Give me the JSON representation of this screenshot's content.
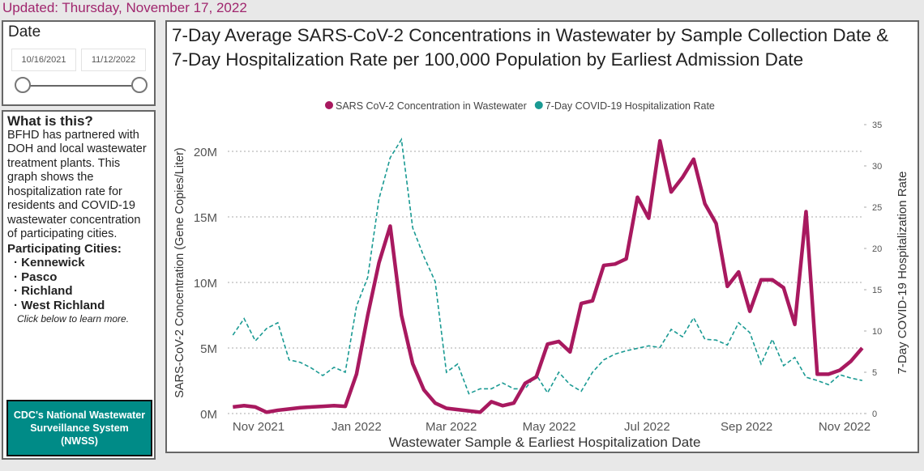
{
  "updated": "Updated: Thursday, November 17, 2022",
  "date_filter": {
    "label": "Date",
    "start": "10/16/2021",
    "end": "11/12/2022",
    "slider_start": 0,
    "slider_end": 1
  },
  "info": {
    "heading": "What is this?",
    "body": "BFHD has partnered with DOH and local wastewater treatment plants. This graph shows the hospitalization rate for residents and COVID-19 wastewater concentration of participating cities.",
    "cities_heading": "Participating Cities:",
    "cities": [
      "Kennewick",
      "Pasco",
      "Richland",
      "West Richland"
    ],
    "more": "Click below to learn more.",
    "button": "CDC's National Wastewater Surveillance System (NWSS)"
  },
  "chart_data": {
    "type": "line",
    "title": "7-Day Average SARS-CoV-2 Concentrations in Wastewater by Sample Collection Date & 7-Day Hospitalization Rate per 100,000 Population by Earliest Admission Date",
    "xlabel": "Wastewater Sample & Earliest Hospitalization Date",
    "ylabel": "SARS-CoV-2 Concentration (Gene Copies/Liter)",
    "y2label": "7-Day COVID-19 Hospitalization Rate",
    "xticks": [
      "Nov 2021",
      "Jan 2022",
      "Mar 2022",
      "May 2022",
      "Jul 2022",
      "Sep 2022",
      "Nov 2022"
    ],
    "xtick_dates": [
      "2021-11-01",
      "2022-01-01",
      "2022-03-01",
      "2022-05-01",
      "2022-07-01",
      "2022-09-01",
      "2022-11-01"
    ],
    "yticks": [
      "0M",
      "5M",
      "10M",
      "15M",
      "20M"
    ],
    "ylim": [
      0,
      20000000
    ],
    "y2ticks": [
      "0",
      "5",
      "10",
      "15",
      "20",
      "25",
      "30",
      "35"
    ],
    "y2lim": [
      0,
      35
    ],
    "grid": true,
    "legend": "top",
    "x": [
      "2021-10-16",
      "2021-10-23",
      "2021-10-30",
      "2021-11-06",
      "2021-11-13",
      "2021-11-20",
      "2021-11-27",
      "2021-12-04",
      "2021-12-11",
      "2021-12-18",
      "2021-12-25",
      "2022-01-01",
      "2022-01-08",
      "2022-01-15",
      "2022-01-22",
      "2022-01-29",
      "2022-02-05",
      "2022-02-12",
      "2022-02-19",
      "2022-02-26",
      "2022-03-05",
      "2022-03-12",
      "2022-03-19",
      "2022-03-26",
      "2022-04-02",
      "2022-04-09",
      "2022-04-16",
      "2022-04-23",
      "2022-04-30",
      "2022-05-07",
      "2022-05-14",
      "2022-05-21",
      "2022-05-28",
      "2022-06-04",
      "2022-06-11",
      "2022-06-18",
      "2022-06-25",
      "2022-07-02",
      "2022-07-09",
      "2022-07-16",
      "2022-07-23",
      "2022-07-30",
      "2022-08-06",
      "2022-08-13",
      "2022-08-20",
      "2022-08-27",
      "2022-09-03",
      "2022-09-10",
      "2022-09-17",
      "2022-09-24",
      "2022-10-01",
      "2022-10-08",
      "2022-10-15",
      "2022-10-22",
      "2022-10-29",
      "2022-11-05",
      "2022-11-12"
    ],
    "series": [
      {
        "name": "SARS CoV-2 Concentration in Wastewater",
        "color": "#a8195f",
        "axis": "left",
        "values": [
          500000,
          600000,
          500000,
          100000,
          250000,
          350000,
          450000,
          500000,
          550000,
          600000,
          550000,
          3000000,
          7500000,
          11500000,
          14300000,
          7500000,
          3800000,
          1800000,
          800000,
          400000,
          300000,
          200000,
          100000,
          900000,
          600000,
          800000,
          2300000,
          2800000,
          5300000,
          5500000,
          4700000,
          8400000,
          8600000,
          11300000,
          11400000,
          11800000,
          16500000,
          14900000,
          20800000,
          16900000,
          18000000,
          19400000,
          16000000,
          14500000,
          9700000,
          10800000,
          7800000,
          10200000,
          10200000,
          9600000,
          6800000,
          15400000,
          3000000,
          3000000,
          3300000,
          4000000,
          5000000
        ]
      },
      {
        "name": "7-Day COVID-19 Hospitalization Rate",
        "color": "#1a9a93",
        "axis": "right",
        "values": [
          9.5,
          11.5,
          8.8,
          10.3,
          11.0,
          6.5,
          6.2,
          5.5,
          4.6,
          5.6,
          5.0,
          13.0,
          16.5,
          26.0,
          31.0,
          33.2,
          22.5,
          19.0,
          16.0,
          5.0,
          6.0,
          2.4,
          3.0,
          3.0,
          3.7,
          3.0,
          3.0,
          4.7,
          2.5,
          5.0,
          3.5,
          2.7,
          5.0,
          6.5,
          7.2,
          7.6,
          7.9,
          8.2,
          8.0,
          10.2,
          9.3,
          11.6,
          9.0,
          8.9,
          8.3,
          11.0,
          9.8,
          6.0,
          9.0,
          5.8,
          6.8,
          4.4,
          4.0,
          3.5,
          4.7,
          4.3,
          4.0
        ]
      }
    ]
  }
}
